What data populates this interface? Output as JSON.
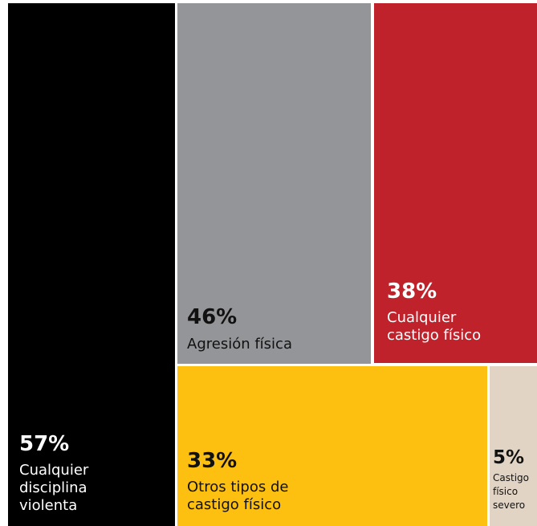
{
  "chart_data": {
    "type": "treemap",
    "cells": [
      {
        "id": "violenta",
        "value": 57,
        "percent_label": "57%",
        "label": "Cualquier\ndisciplina\nviolenta",
        "color": "#000000"
      },
      {
        "id": "agresion",
        "value": 46,
        "percent_label": "46%",
        "label": "Agresión física",
        "color": "#939598"
      },
      {
        "id": "castigo",
        "value": 38,
        "percent_label": "38%",
        "label": "Cualquier\ncastigo físico",
        "color": "#C0222B"
      },
      {
        "id": "otros",
        "value": 33,
        "percent_label": "33%",
        "label": "Otros tipos de\ncastigo físico",
        "color": "#FDC010"
      },
      {
        "id": "severo",
        "value": 5,
        "percent_label": "5%",
        "label": "Castigo\nfísico\nsevero",
        "color": "#E1D4C4"
      }
    ]
  }
}
